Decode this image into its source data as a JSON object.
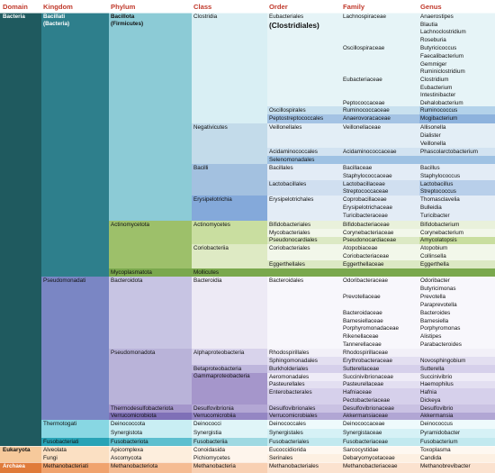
{
  "headers": {
    "domain": "Domain",
    "kingdom": "Kingdom",
    "phylum": "Phylum",
    "class": "Class",
    "order": "Order",
    "family": "Family",
    "genus": "Genus"
  },
  "domain": {
    "bacteria": "Bacteria",
    "eukaryota": "Eukaryota",
    "archaea": "Archaea"
  },
  "kingdom": {
    "bacillati": "Bacillati",
    "bacillati_alt": "(Bacteria)",
    "pseudomonadati": "Pseudomonadati",
    "thermotogati": "Thermotogati",
    "fusobacteriati": "Fusobacteriati",
    "alveolata": "Alveolata",
    "fungi": "Fungi",
    "methanobacteriati": "Methanobacteriati"
  },
  "phylum": {
    "bacillota": "Bacillota",
    "bacillota_alt": "(Firmicutes)",
    "actinomycetota": "Actinomycetota",
    "mycoplasmatota": "Mycoplasmatota",
    "bacteroidota": "Bacteroidota",
    "pseudomonadota": "Pseudomonadota",
    "thermodesulfobacteriota": "Thermodesulfobacteriota",
    "verrucomicrobiota": "Verrucomicrobiota",
    "deinococcota": "Deinococcota",
    "synergistota": "Synergistota",
    "fusobacteriota": "Fusobacteriota",
    "apicomplexa": "Apicomplexa",
    "ascomycota": "Ascomycota",
    "methanobacteriota": "Methanobacteriota"
  },
  "class": {
    "clostridia": "Clostridia",
    "negativicutes": "Negativicutes",
    "bacilli": "Bacilli",
    "erysipelotrichia": "Erysipelotrichia",
    "actinomycetes": "Actinomycetes",
    "coriobacteriia": "Coriobacteriia",
    "mollicutes": "Mollicutes",
    "bacteroidia": "Bacteroidia",
    "alphaproteobacteria": "Alphaproteobacteria",
    "betaproteobacteria": "Betaproteobacteria",
    "gammaproteobacteria": "Gammaproteobacteria",
    "desulfovibrionia": "Desulfovibrionia",
    "verrucomicrobiia": "Verrucomicrobiia",
    "deinococci": "Deinococci",
    "synergistia": "Synergistia",
    "fusobacteriia": "Fusobacteriia",
    "conoidasida": "Conoidasida",
    "pichiomycetes": "Pichiomycetes",
    "methanobacteria": "Methanobacteria"
  },
  "order": {
    "eubacteriales": "Eubacteriales",
    "clostridiales": "(Clostridiales)",
    "oscillospirales": "Oscillospirales",
    "peptostreptococcales": "Peptostreptococcales",
    "veillonellales": "Veillonellales",
    "acidaminococcales": "Acidaminococcales",
    "selenomonadales": "Selenomonadales",
    "bacillales": "Bacillales",
    "lactobacillales": "Lactobacillales",
    "erysipelotrichales": "Erysipelotrichales",
    "bifidobacteriales": "Bifidobacteriales",
    "mycobacteriales": "Mycobacteriales",
    "pseudonocardiales": "Pseudonocardiales",
    "coriobacteriales": "Coriobacteriales",
    "eggerthellales": "Eggerthellales",
    "bacteroidales": "Bacteroidales",
    "rhodospirillales": "Rhodospirillales",
    "sphingomonadales": "Sphingomonadales",
    "burkholderiales": "Burkholderiales",
    "aeromonadales": "Aeromonadales",
    "pasteurellales": "Pasteurellales",
    "enterobacterales": "Enterobacterales",
    "desulfovibrionales": "Desulfovibrionales",
    "verrucomicrobiales": "Verrucomicrobiales",
    "deinococcales": "Deinococcales",
    "synergistales": "Synergistales",
    "fusobacteriales": "Fusobacteriales",
    "eucoccidiorida": "Eucoccidiorida",
    "serinales": "Serinales",
    "methanobacteriales": "Methanobacteriales"
  },
  "family": {
    "lachnospiraceae": "Lachnospiraceae",
    "oscillospiraceae": "Oscillospiraceae",
    "eubacteriaceae": "Eubacteriaceae",
    "peptococcaceae": "Peptococcaceae",
    "ruminococcaceae": "Ruminococcaceae",
    "anaerovoracaceae": "Anaerovoracaceae",
    "veillonellaceae": "Veillonellaceae",
    "acidaminococcaceae": "Acidaminococcaceae",
    "bacillaceae": "Bacillaceae",
    "staphylococcaceae": "Staphylococcaceae",
    "lactobacillaceae": "Lactobacillaceae",
    "streptococcaceae": "Streptococcaceae",
    "coprobacillaceae": "Coprobacillaceae",
    "erysipelotrichaceae": "Erysipelotrichaceae",
    "turicibacteraceae": "Turicibacteraceae",
    "bifidobacteriaceae": "Bifidobacteriaceae",
    "corynebacteriaceae": "Corynebacteriaceae",
    "pseudonocardiaceae": "Pseudonocardiaceae",
    "atopobiaceae": "Atopobiaceae",
    "coriobacteriaceae": "Coriobacteriaceae",
    "eggerthellaceae": "Eggerthellaceae",
    "odoribacteraceae": "Odoribacteraceae",
    "prevotellaceae": "Prevotellaceae",
    "bacteroidaceae": "Bacteroidaceae",
    "barnesiellaceae": "Barnesiellaceae",
    "porphyromonadaceae": "Porphyromonadaceae",
    "rikenellaceae": "Rikenellaceae",
    "tannerellaceae": "Tannerellaceae",
    "rhodospirillaceae": "Rhodospirillaceae",
    "erythrobacteraceae": "Erythrobacteraceae",
    "sutterellaceae": "Sutterellaceae",
    "succinivibrionaceae": "Succinivibrionaceae",
    "pasteurellaceae": "Pasteurellaceae",
    "hafniaceae": "Hafniaceae",
    "pectobacteriaceae": "Pectobacteriaceae",
    "desulfovibrionaceae": "Desulfovibrionaceae",
    "akkermansiaceae": "Akkermansiaceae",
    "deinococcaceae": "Deinococcaceae",
    "synergistaceae": "Synergistaceae",
    "fusobacteriaceae": "Fusobacteriaceae",
    "sarcocystidae": "Sarcocystidae",
    "debaryomycetaceae": "Debaryomycetaceae",
    "methanobacteriaceae": "Methanobacteriaceae"
  },
  "genus": {
    "anaerostipes": "Anaerostipes",
    "blautia": "Blautia",
    "lachnoclostridium": "Lachnoclostridium",
    "roseburia": "Roseburia",
    "butyricicoccus": "Butyricicoccus",
    "faecalibacterium": "Faecalibacterium",
    "gemmiger": "Gemmiger",
    "ruminiclostridium": "Ruminiclostridium",
    "clostridium": "Clostridium",
    "eubacterium": "Eubacterium",
    "intestinibacter": "Intestinibacter",
    "dehalobacterium": "Dehalobacterium",
    "ruminococcus": "Ruminococcus",
    "mogibacterium": "Mogibacterium",
    "allisonella": "Allisonella",
    "dialister": "Dialister",
    "veillonella": "Veillonella",
    "phascolarctobacterium": "Phascolarctobacterium",
    "bacillus": "Bacillus",
    "staphylococcus": "Staphylococcus",
    "lactobacillus": "Lactobacillus",
    "streptococcus": "Streptococcus",
    "thomasclavelia": "Thomasclavelia",
    "bulleidia": "Bulleidia",
    "turicibacter": "Turicibacter",
    "bifidobacterium": "Bifidobacterium",
    "corynebacterium": "Corynebacterium",
    "amycolatopsis": "Amycolatopsis",
    "atopobium": "Atopobium",
    "collinsella": "Collinsella",
    "eggerthella": "Eggerthella",
    "odoribacter": "Odoribacter",
    "butyricimonas": "Butyricimonas",
    "prevotella": "Prevotella",
    "paraprevotella": "Paraprevotella",
    "bacteroides": "Bacteroides",
    "barnesiella": "Barnesiella",
    "porphyromonas": "Porphyromonas",
    "alistipes": "Alistipes",
    "parabacteroides": "Parabacteroides",
    "novosphingobium": "Novosphingobium",
    "sutterella": "Sutterella",
    "succinivibrio": "Succinivibrio",
    "haemophilus": "Haemophilus",
    "hafnia": "Hafnia",
    "dickeya": "Dickeya",
    "desulfovibrio": "Desulfovibrio",
    "akkermansia": "Akkermansia",
    "deinococcus": "Deinococcus",
    "pyramidobacter": "Pyramidobacter",
    "fusobacterium": "Fusobacterium",
    "toxoplasma": "Toxoplasma",
    "candida": "Candida",
    "methanobrevibacter": "Methanobrevibacter"
  },
  "colors": {
    "header_text": "#c0392b",
    "bacteria_domain": "#1f5a5f",
    "bacillati_kingdom": "#2e7f8c",
    "bacillota_phylum": "#8ccbd6",
    "actinomycetota_phylum": "#9dc06a",
    "pseudomonadati_kingdom": "#7a86c4",
    "fusobacteriati": "#28a3b6",
    "eukaryota": "#f6c99b",
    "archaea": "#e07b3a"
  }
}
